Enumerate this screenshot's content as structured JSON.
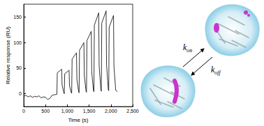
{
  "chart_data": {
    "type": "line",
    "y_label": "Relative response (RU)",
    "x_label": "Time (s)",
    "x": [
      0,
      50,
      100,
      150,
      200,
      250,
      300,
      350,
      400,
      450,
      500,
      550,
      600,
      650,
      700,
      760,
      770,
      870,
      880,
      920,
      930,
      940,
      1040,
      1050,
      1090,
      1100,
      1110,
      1210,
      1220,
      1260,
      1270,
      1280,
      1380,
      1390,
      1430,
      1440,
      1450,
      1550,
      1560,
      1600,
      1610,
      1620,
      1720,
      1730,
      1770,
      1780,
      1790,
      1890,
      1900,
      1940,
      1950,
      1960,
      2060,
      2070,
      2110,
      2150
    ],
    "values": [
      -5,
      -3,
      -6,
      -4,
      -7,
      -5,
      -6,
      -4,
      -8,
      -6,
      -7,
      -11,
      -9,
      -3,
      -2,
      -1,
      41,
      48,
      17,
      2,
      0,
      39,
      46,
      16,
      2,
      1,
      68,
      80,
      28,
      4,
      2,
      85,
      100,
      35,
      5,
      3,
      104,
      122,
      43,
      6,
      4,
      134,
      158,
      55,
      8,
      5,
      138,
      162,
      57,
      8,
      6,
      130,
      153,
      54,
      7,
      4
    ],
    "color": "#000000",
    "xlim": [
      0,
      2500
    ],
    "xticks": [
      0,
      500,
      1000,
      1500,
      2000,
      2500
    ],
    "ylim": [
      -25,
      175
    ],
    "yticks": [
      0,
      50,
      100,
      150
    ],
    "grid": false,
    "annotations": [
      {
        "text": "k",
        "subscript": "on"
      },
      {
        "text": "k",
        "subscript": "off"
      }
    ]
  }
}
